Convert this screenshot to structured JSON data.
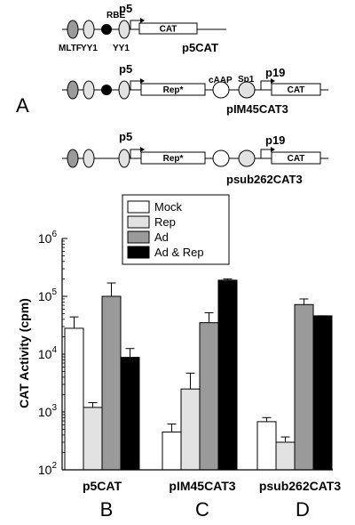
{
  "panel_a": {
    "letter": "A",
    "labels": {
      "rbe": "RBE",
      "p5": "p5",
      "p19": "p19",
      "mltf": "MLTF",
      "yy1": "YY1",
      "yy1b": "YY1",
      "caap": "cAAP",
      "sp1": "Sp1",
      "cat": "CAT",
      "rep": "Rep*"
    },
    "constructs": [
      "p5CAT",
      "pIM45CAT3",
      "psub262CAT3"
    ]
  },
  "panel_letters": [
    "B",
    "C",
    "D"
  ],
  "chart_data": {
    "type": "bar",
    "ylabel": "CAT Activity (cpm)",
    "yscale": "log",
    "ylim": [
      100,
      1000000
    ],
    "yticks": [
      {
        "base": "10",
        "exp": "2"
      },
      {
        "base": "10",
        "exp": "3"
      },
      {
        "base": "10",
        "exp": "4"
      },
      {
        "base": "10",
        "exp": "5"
      },
      {
        "base": "10",
        "exp": "6"
      }
    ],
    "categories": [
      "p5CAT",
      "pIM45CAT3",
      "psub262CAT3"
    ],
    "legend_position": "top-center",
    "series": [
      {
        "name": "Mock",
        "color": "#ffffff",
        "values": [
          28000,
          450,
          680
        ],
        "err": [
          44000,
          620,
          800
        ]
      },
      {
        "name": "Rep",
        "color": "#e2e2e2",
        "values": [
          1200,
          2500,
          300
        ],
        "err": [
          1450,
          4700,
          370
        ]
      },
      {
        "name": "Ad",
        "color": "#9a9a9a",
        "values": [
          100000,
          35000,
          72000
        ],
        "err": [
          170000,
          52000,
          90000
        ]
      },
      {
        "name": "Ad & Rep",
        "color": "#000000",
        "values": [
          8800,
          190000,
          46000
        ],
        "err": [
          12500,
          200000,
          46000
        ]
      }
    ]
  }
}
